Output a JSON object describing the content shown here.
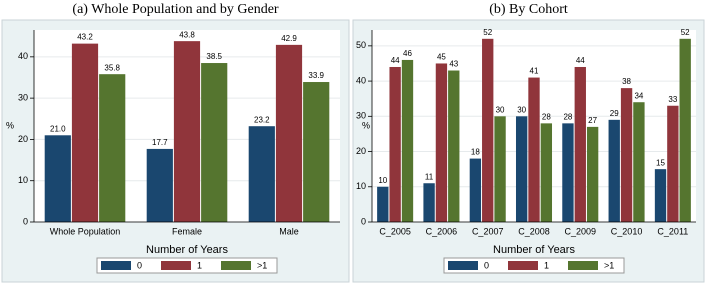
{
  "chart_data": [
    {
      "type": "bar",
      "title": "(a) Whole Population and by Gender",
      "ylabel": "%",
      "categories": [
        "Whole Population",
        "Female",
        "Male"
      ],
      "series": [
        {
          "name": "0",
          "color": "#1a476f",
          "values": [
            21.0,
            17.7,
            23.2
          ],
          "value_labels": [
            "21.0",
            "17.7",
            "23.2"
          ]
        },
        {
          "name": "1",
          "color": "#90353b",
          "values": [
            43.2,
            43.8,
            42.9
          ],
          "value_labels": [
            "43.2",
            "43.8",
            "42.9"
          ]
        },
        {
          "name": ">1",
          "color": "#55752f",
          "values": [
            35.8,
            38.5,
            33.9
          ],
          "value_labels": [
            "35.8",
            "38.5",
            "33.9"
          ]
        }
      ],
      "legend_title": "Number of Years",
      "ylim": [
        0,
        46.5
      ],
      "yticks": [
        0,
        10,
        20,
        30,
        40
      ],
      "grid": true
    },
    {
      "type": "bar",
      "title": "(b) By Cohort",
      "ylabel": "%",
      "categories": [
        "C_2005",
        "C_2006",
        "C_2007",
        "C_2008",
        "C_2009",
        "C_2010",
        "C_2011"
      ],
      "series": [
        {
          "name": "0",
          "color": "#1a476f",
          "values": [
            10,
            11,
            18,
            30,
            28,
            29,
            15
          ]
        },
        {
          "name": "1",
          "color": "#90353b",
          "values": [
            44,
            45,
            52,
            41,
            44,
            38,
            33
          ]
        },
        {
          "name": ">1",
          "color": "#55752f",
          "values": [
            46,
            43,
            30,
            28,
            27,
            34,
            52
          ]
        }
      ],
      "legend_title": "Number of Years",
      "ylim": [
        0,
        54.5
      ],
      "yticks": [
        0,
        10,
        20,
        30,
        40,
        50
      ],
      "grid": true
    }
  ]
}
